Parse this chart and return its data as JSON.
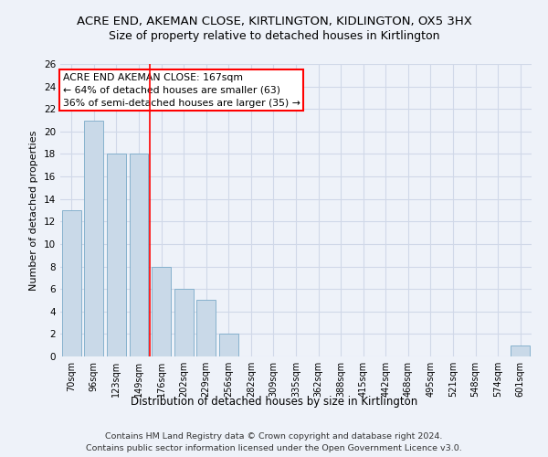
{
  "title": "ACRE END, AKEMAN CLOSE, KIRTLINGTON, KIDLINGTON, OX5 3HX",
  "subtitle": "Size of property relative to detached houses in Kirtlington",
  "xlabel": "Distribution of detached houses by size in Kirtlington",
  "ylabel": "Number of detached properties",
  "categories": [
    "70sqm",
    "96sqm",
    "123sqm",
    "149sqm",
    "176sqm",
    "202sqm",
    "229sqm",
    "256sqm",
    "282sqm",
    "309sqm",
    "335sqm",
    "362sqm",
    "388sqm",
    "415sqm",
    "442sqm",
    "468sqm",
    "495sqm",
    "521sqm",
    "548sqm",
    "574sqm",
    "601sqm"
  ],
  "values": [
    13,
    21,
    18,
    18,
    8,
    6,
    5,
    2,
    0,
    0,
    0,
    0,
    0,
    0,
    0,
    0,
    0,
    0,
    0,
    0,
    1
  ],
  "bar_color": "#c9d9e8",
  "bar_edge_color": "#7aaac8",
  "grid_color": "#d0d8e8",
  "annotation_text": "ACRE END AKEMAN CLOSE: 167sqm\n← 64% of detached houses are smaller (63)\n36% of semi-detached houses are larger (35) →",
  "annotation_box_color": "white",
  "annotation_box_edge_color": "red",
  "vline_x_index": 3.5,
  "vline_color": "red",
  "ylim": [
    0,
    26
  ],
  "yticks": [
    0,
    2,
    4,
    6,
    8,
    10,
    12,
    14,
    16,
    18,
    20,
    22,
    24,
    26
  ],
  "footer_text": "Contains HM Land Registry data © Crown copyright and database right 2024.\nContains public sector information licensed under the Open Government Licence v3.0.",
  "bg_color": "#eef2f9",
  "title_fontsize": 9.5,
  "subtitle_fontsize": 9,
  "annotation_fontsize": 7.8,
  "footer_fontsize": 6.8,
  "xlabel_fontsize": 8.5,
  "ylabel_fontsize": 8,
  "tick_fontsize": 7,
  "ytick_fontsize": 7.5
}
